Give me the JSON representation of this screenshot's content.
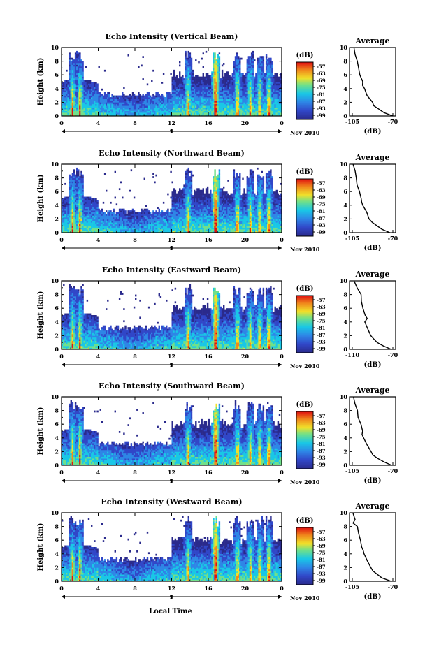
{
  "x_axis_label": "Local Time",
  "date_label": "Nov 2010",
  "day_tick": "9",
  "colorbar_unit": "(dB)",
  "avg_title": "Average",
  "avg_xlabel": "(dB)",
  "colorbar_ticks": [
    "-57",
    "-63",
    "-69",
    "-75",
    "-81",
    "-87",
    "-93",
    "-99"
  ],
  "colors": {
    "low": "#2a2a8c",
    "mid": "#19c7e6",
    "high": "#e81e10"
  },
  "chart_data": [
    {
      "type": "heatmap",
      "title": "Echo Intensity (Vertical Beam)",
      "ylabel": "Height (km)",
      "xlim": [
        0,
        24
      ],
      "ylim": [
        0,
        10
      ],
      "x_ticks": [
        "0",
        "4",
        "8",
        "12",
        "16",
        "20",
        "0"
      ],
      "y_ticks": [
        "0",
        "2",
        "4",
        "6",
        "8",
        "10"
      ],
      "avg_x_ticks": [
        "-105",
        "-70"
      ],
      "avg_xlim": [
        -105,
        -70
      ],
      "avg_profile": [
        [
          0,
          -70
        ],
        [
          0.5,
          -78
        ],
        [
          1,
          -82
        ],
        [
          1.5,
          -86
        ],
        [
          2,
          -88
        ],
        [
          3,
          -92
        ],
        [
          4,
          -95
        ],
        [
          4.5,
          -96
        ],
        [
          5,
          -96
        ],
        [
          6,
          -98
        ],
        [
          7,
          -100
        ],
        [
          8,
          -101
        ],
        [
          9,
          -103
        ],
        [
          10,
          -104
        ]
      ]
    },
    {
      "type": "heatmap",
      "title": "Echo Intensity (Northward Beam)",
      "ylabel": "Height (km)",
      "xlim": [
        0,
        24
      ],
      "ylim": [
        0,
        10
      ],
      "x_ticks": [
        "0",
        "4",
        "8",
        "12",
        "16",
        "20",
        "0"
      ],
      "y_ticks": [
        "0",
        "2",
        "4",
        "6",
        "8",
        "10"
      ],
      "avg_x_ticks": [
        "-105",
        "-70"
      ],
      "avg_xlim": [
        -105,
        -70
      ],
      "avg_profile": [
        [
          0,
          -72
        ],
        [
          0.5,
          -80
        ],
        [
          1,
          -84
        ],
        [
          1.5,
          -88
        ],
        [
          2,
          -90
        ],
        [
          3,
          -93
        ],
        [
          4,
          -96
        ],
        [
          4.5,
          -97
        ],
        [
          5,
          -97
        ],
        [
          6,
          -99
        ],
        [
          7,
          -101
        ],
        [
          8,
          -102
        ],
        [
          9,
          -103
        ],
        [
          10,
          -104
        ]
      ]
    },
    {
      "type": "heatmap",
      "title": "Echo Intensity (Eastward Beam)",
      "ylabel": "Height (km)",
      "xlim": [
        0,
        24
      ],
      "ylim": [
        0,
        10
      ],
      "x_ticks": [
        "0",
        "4",
        "8",
        "12",
        "16",
        "20",
        "0"
      ],
      "y_ticks": [
        "0",
        "2",
        "4",
        "6",
        "8",
        "10"
      ],
      "avg_x_ticks": [
        "-110",
        "-70"
      ],
      "avg_xlim": [
        -110,
        -70
      ],
      "avg_profile": [
        [
          0,
          -72
        ],
        [
          0.5,
          -80
        ],
        [
          1,
          -85
        ],
        [
          1.5,
          -89
        ],
        [
          2,
          -92
        ],
        [
          3,
          -95
        ],
        [
          4,
          -98
        ],
        [
          4.5,
          -95
        ],
        [
          5,
          -97
        ],
        [
          6,
          -100
        ],
        [
          7,
          -101
        ],
        [
          8,
          -102
        ],
        [
          9,
          -105
        ],
        [
          10,
          -108
        ]
      ]
    },
    {
      "type": "heatmap",
      "title": "Echo Intensity (Southward Beam)",
      "ylabel": "Height (km)",
      "xlim": [
        0,
        24
      ],
      "ylim": [
        0,
        10
      ],
      "x_ticks": [
        "0",
        "4",
        "8",
        "12",
        "16",
        "20",
        "0"
      ],
      "y_ticks": [
        "0",
        "2",
        "4",
        "6",
        "8",
        "10"
      ],
      "avg_x_ticks": [
        "-105",
        "-70"
      ],
      "avg_xlim": [
        -105,
        -70
      ],
      "avg_profile": [
        [
          0,
          -71
        ],
        [
          0.5,
          -78
        ],
        [
          1,
          -83
        ],
        [
          1.5,
          -87
        ],
        [
          2,
          -89
        ],
        [
          3,
          -92
        ],
        [
          4,
          -95
        ],
        [
          4.5,
          -96
        ],
        [
          5,
          -96
        ],
        [
          6,
          -98
        ],
        [
          7,
          -100
        ],
        [
          8,
          -101
        ],
        [
          9,
          -103
        ],
        [
          10,
          -104
        ]
      ]
    },
    {
      "type": "heatmap",
      "title": "Echo Intensity (Westward Beam)",
      "ylabel": "Height (km)",
      "xlim": [
        0,
        24
      ],
      "ylim": [
        0,
        10
      ],
      "x_ticks": [
        "0",
        "4",
        "8",
        "12",
        "16",
        "20",
        "0"
      ],
      "y_ticks": [
        "0",
        "2",
        "4",
        "6",
        "8",
        "10"
      ],
      "avg_x_ticks": [
        "-105",
        "-70"
      ],
      "avg_xlim": [
        -105,
        -70
      ],
      "avg_profile": [
        [
          0,
          -71
        ],
        [
          0.5,
          -79
        ],
        [
          1,
          -83
        ],
        [
          1.5,
          -87
        ],
        [
          2,
          -89
        ],
        [
          3,
          -92
        ],
        [
          4,
          -95
        ],
        [
          4.5,
          -96
        ],
        [
          5,
          -97
        ],
        [
          6,
          -98
        ],
        [
          7,
          -100
        ],
        [
          8,
          -101
        ],
        [
          8.5,
          -104
        ],
        [
          9,
          -102
        ],
        [
          10,
          -104
        ]
      ]
    }
  ]
}
